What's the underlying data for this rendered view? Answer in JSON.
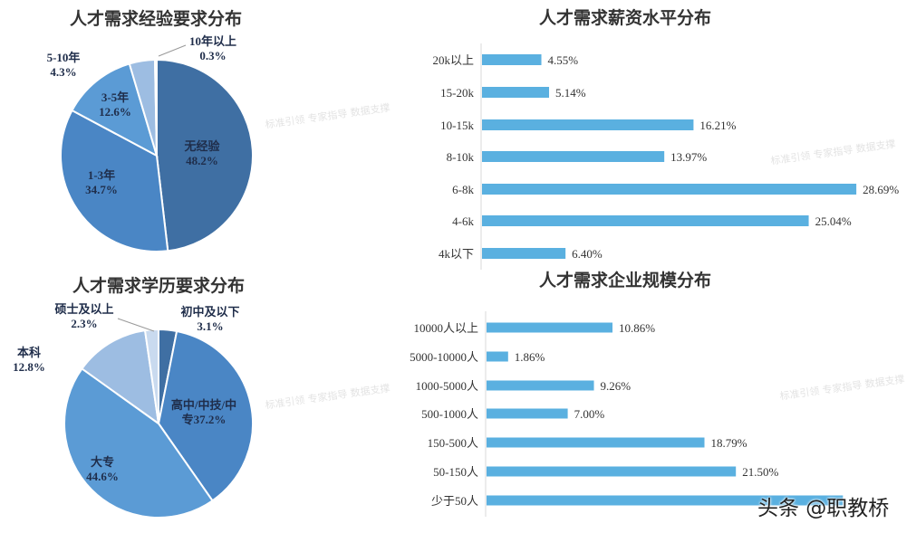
{
  "watermark": "标准引领 专家指导 数据支撑",
  "brand": "头条 @职教桥",
  "chart_data": [
    {
      "type": "pie",
      "title": "人才需求经验要求分布",
      "labels": [
        "无经验",
        "1-3年",
        "3-5年",
        "5-10年",
        "10年以上"
      ],
      "values": [
        48.2,
        34.7,
        12.6,
        4.3,
        0.3
      ],
      "value_labels": [
        "48.2%",
        "34.7%",
        "12.6%",
        "4.3%",
        "0.3%"
      ],
      "colors": [
        "#3f6fa3",
        "#4a86c5",
        "#5b9bd5",
        "#9dbde2",
        "#c9daef"
      ]
    },
    {
      "type": "pie",
      "title": "人才需求学历要求分布",
      "labels": [
        "初中及以下",
        "高中/中技/中专",
        "大专",
        "本科",
        "硕士及以上"
      ],
      "display_labels": [
        "初中及以下",
        "高中/中技/中\n专37.2%",
        "大专",
        "本科",
        "硕士及以上"
      ],
      "values": [
        3.1,
        37.2,
        44.6,
        12.8,
        2.3
      ],
      "value_labels": [
        "3.1%",
        "",
        "44.6%",
        "12.8%",
        "2.3%"
      ],
      "colors": [
        "#3f6fa3",
        "#4a86c5",
        "#5b9bd5",
        "#9dbde2",
        "#c9daef"
      ]
    },
    {
      "type": "bar",
      "orientation": "horizontal",
      "title": "人才需求薪资水平分布",
      "categories": [
        "20k以上",
        "15-20k",
        "10-15k",
        "8-10k",
        "6-8k",
        "4-6k",
        "4k以下"
      ],
      "values": [
        4.55,
        5.14,
        16.21,
        13.97,
        28.69,
        25.04,
        6.4
      ],
      "value_labels": [
        "4.55%",
        "5.14%",
        "16.21%",
        "13.97%",
        "28.69%",
        "25.04%",
        "6.40%"
      ],
      "color": "#5ab0e0"
    },
    {
      "type": "bar",
      "orientation": "horizontal",
      "title": "人才需求企业规模分布",
      "categories": [
        "10000人以上",
        "5000-10000人",
        "1000-5000人",
        "500-1000人",
        "150-500人",
        "50-150人",
        "少于50人"
      ],
      "values": [
        10.86,
        1.86,
        9.26,
        7.0,
        18.79,
        21.5,
        30.73
      ],
      "value_labels": [
        "10.86%",
        "1.86%",
        "9.26%",
        "7.00%",
        "18.79%",
        "21.50%",
        ""
      ],
      "color": "#5ab0e0"
    }
  ]
}
